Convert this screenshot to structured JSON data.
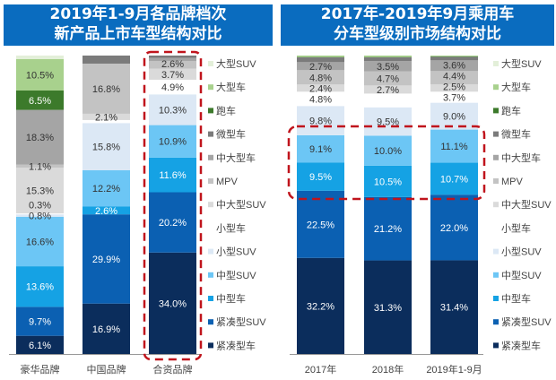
{
  "colors": {
    "title_bg": "#0a6cbf",
    "highlight_box": "#c0141c"
  },
  "chart_data": [
    {
      "type": "stacked-bar",
      "title_lines": [
        "2019年1-9月各品牌档次",
        "新产品上市车型结构对比"
      ],
      "categories": [
        "豪华品牌",
        "中国品牌",
        "合资品牌"
      ],
      "highlight": "合资品牌",
      "legend_position": "right",
      "grid": false,
      "series": [
        {
          "name": "紧凑型车",
          "color": "#0b2d5c",
          "values": [
            6.1,
            16.9,
            34.0
          ],
          "labels": [
            "6.1%",
            "16.9%",
            "34.0%"
          ]
        },
        {
          "name": "紧凑型SUV",
          "color": "#0b60b2",
          "values": [
            9.7,
            29.9,
            20.2
          ],
          "labels": [
            "9.7%",
            "29.9%",
            "20.2%"
          ]
        },
        {
          "name": "中型车",
          "color": "#15a2e4",
          "values": [
            13.6,
            2.6,
            11.6
          ],
          "labels": [
            "13.6%",
            "2.6%",
            "11.6%"
          ]
        },
        {
          "name": "中型SUV",
          "color": "#6cc6f5",
          "values": [
            16.6,
            12.2,
            10.9
          ],
          "labels": [
            "16.6%",
            "12.2%",
            "10.9%"
          ]
        },
        {
          "name": "小型SUV",
          "color": "#dce8f5",
          "values": [
            0.8,
            15.8,
            10.3
          ],
          "labels": [
            "0.8%",
            "15.8%",
            "10.3%"
          ]
        },
        {
          "name": "小型车",
          "color": "#ffffff",
          "values": [
            0.3,
            1.0,
            4.9
          ],
          "labels": [
            "0.3%",
            "",
            "4.9%"
          ]
        },
        {
          "name": "中大型SUV",
          "color": "#dadada",
          "values": [
            15.3,
            2.1,
            3.7
          ],
          "labels": [
            "15.3%",
            "2.1%",
            "3.7%"
          ]
        },
        {
          "name": "MPV",
          "color": "#c3c3c3",
          "values": [
            1.1,
            16.8,
            2.6
          ],
          "labels": [
            "1.1%",
            "16.8%",
            "2.6%"
          ]
        },
        {
          "name": "中大型车",
          "color": "#a5a5a5",
          "values": [
            18.3,
            0,
            1.0
          ],
          "labels": [
            "18.3%",
            "",
            ""
          ]
        },
        {
          "name": "微型车",
          "color": "#7b7b7b",
          "values": [
            0,
            2.7,
            0.8
          ],
          "labels": [
            "",
            "",
            ""
          ]
        },
        {
          "name": "跑车",
          "color": "#3c7a2b",
          "values": [
            6.5,
            0,
            0
          ],
          "labels": [
            "6.5%",
            "",
            ""
          ]
        },
        {
          "name": "大型车",
          "color": "#a8d18d",
          "values": [
            10.5,
            0,
            0
          ],
          "labels": [
            "10.5%",
            "",
            ""
          ]
        },
        {
          "name": "大型SUV",
          "color": "#e3efd9",
          "values": [
            1.2,
            0,
            0
          ],
          "labels": [
            "",
            "",
            ""
          ]
        }
      ]
    },
    {
      "type": "stacked-bar",
      "title_lines": [
        "2017年-2019年9月乘用车",
        "分车型级别市场结构对比"
      ],
      "categories": [
        "2017年",
        "2018年",
        "2019年1-9月"
      ],
      "highlight": [
        "中型车",
        "中型SUV"
      ],
      "legend_position": "right",
      "grid": false,
      "series": [
        {
          "name": "紧凑型车",
          "color": "#0b2d5c",
          "values": [
            32.2,
            31.3,
            31.4
          ],
          "labels": [
            "32.2%",
            "31.3%",
            "31.4%"
          ]
        },
        {
          "name": "紧凑型SUV",
          "color": "#0b60b2",
          "values": [
            22.5,
            21.2,
            22.0
          ],
          "labels": [
            "22.5%",
            "21.2%",
            "22.0%"
          ]
        },
        {
          "name": "中型车",
          "color": "#15a2e4",
          "values": [
            9.5,
            10.5,
            10.7
          ],
          "labels": [
            "9.5%",
            "10.5%",
            "10.7%"
          ]
        },
        {
          "name": "中型SUV",
          "color": "#6cc6f5",
          "values": [
            9.1,
            10.0,
            11.1
          ],
          "labels": [
            "9.1%",
            "10.0%",
            "11.1%"
          ]
        },
        {
          "name": "小型SUV",
          "color": "#dce8f5",
          "values": [
            9.8,
            9.5,
            9.0
          ],
          "labels": [
            "9.8%",
            "9.5%",
            "9.0%"
          ]
        },
        {
          "name": "小型车",
          "color": "#ffffff",
          "values": [
            4.8,
            4.6,
            3.7
          ],
          "labels": [
            "4.8%",
            "",
            "3.7%"
          ]
        },
        {
          "name": "中大型SUV",
          "color": "#dadada",
          "values": [
            2.4,
            2.7,
            2.5
          ],
          "labels": [
            "2.4%",
            "2.7%",
            "2.5%"
          ]
        },
        {
          "name": "MPV",
          "color": "#c3c3c3",
          "values": [
            4.8,
            4.7,
            4.4
          ],
          "labels": [
            "4.8%",
            "4.7%",
            "4.4%"
          ]
        },
        {
          "name": "中大型车",
          "color": "#a5a5a5",
          "values": [
            2.7,
            3.5,
            3.6
          ],
          "labels": [
            "2.7%",
            "3.5%",
            "3.6%"
          ]
        },
        {
          "name": "微型车",
          "color": "#7b7b7b",
          "values": [
            1.6,
            1.2,
            1.2
          ],
          "labels": [
            "",
            "",
            ""
          ]
        },
        {
          "name": "跑车",
          "color": "#3c7a2b",
          "values": [
            0.1,
            0.1,
            0.1
          ],
          "labels": [
            "",
            "",
            ""
          ]
        },
        {
          "name": "大型车",
          "color": "#a8d18d",
          "values": [
            0.5,
            0.5,
            0.3
          ],
          "labels": [
            "",
            "",
            ""
          ]
        },
        {
          "name": "大型SUV",
          "color": "#e3efd9",
          "values": [
            0,
            0,
            0
          ],
          "labels": [
            "",
            "",
            ""
          ]
        }
      ]
    }
  ]
}
